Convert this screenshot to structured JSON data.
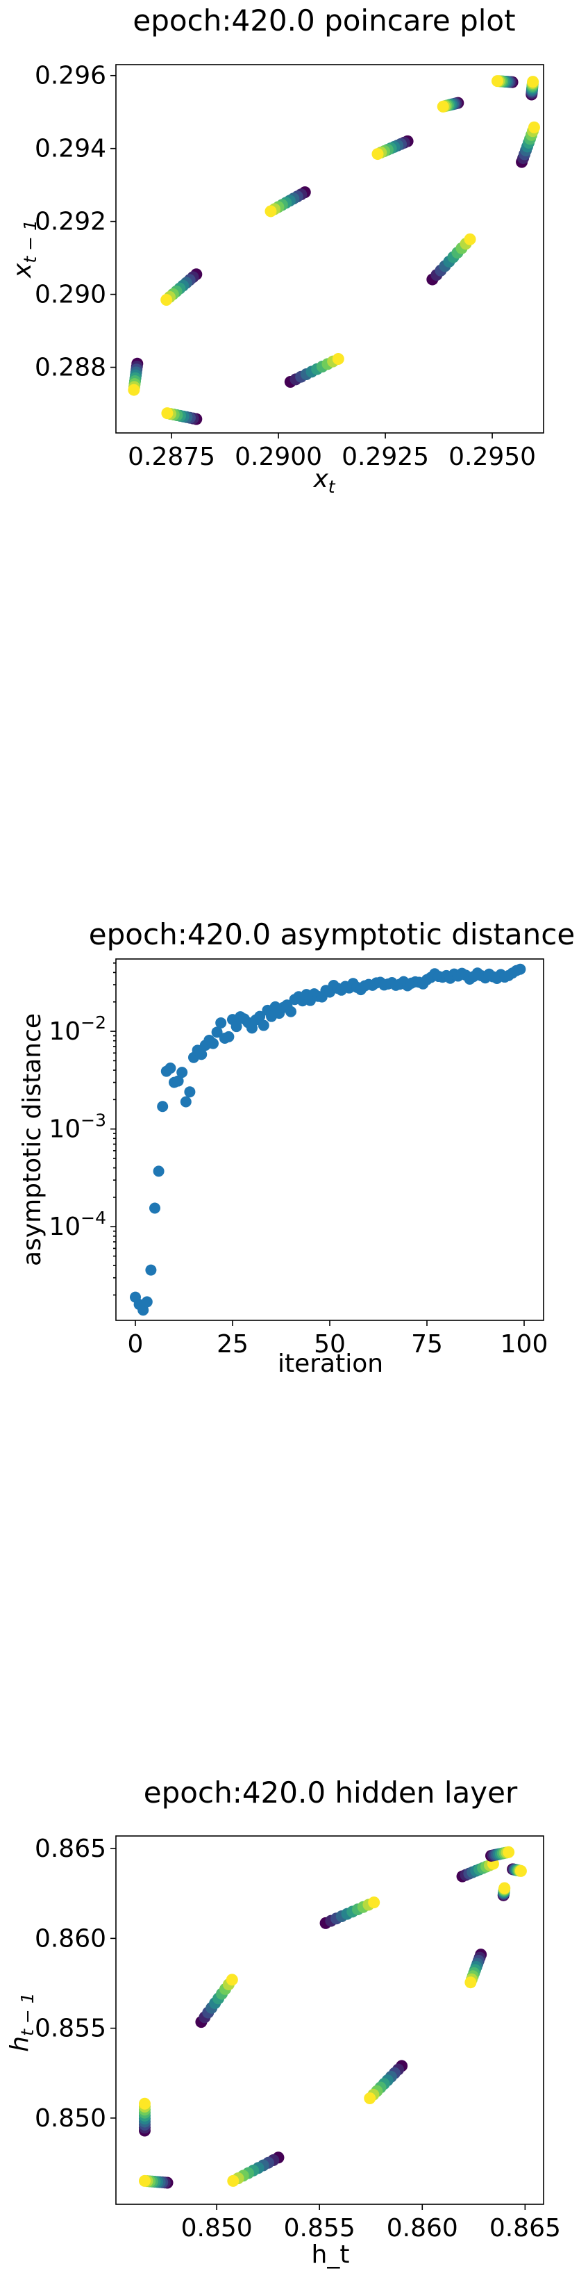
{
  "chart_data": [
    {
      "type": "scatter",
      "title": "epoch:420.0 poincare plot",
      "xlabel": "x_t",
      "ylabel": "x_{t-1}",
      "xlim": [
        0.2862,
        0.2962
      ],
      "ylim": [
        0.2862,
        0.2963
      ],
      "xticks": [
        0.2875,
        0.29,
        0.2925,
        0.295
      ],
      "xtick_labels": [
        "0.2875",
        "0.2900",
        "0.2925",
        "0.2950"
      ],
      "yticks": [
        0.288,
        0.29,
        0.292,
        0.294,
        0.296
      ],
      "ytick_labels": [
        "0.288",
        "0.290",
        "0.292",
        "0.294",
        "0.296"
      ],
      "colormap": [
        "#440154",
        "#3b528b",
        "#21918c",
        "#5ec962",
        "#fde725"
      ],
      "segments": [
        {
          "start": [
            0.2867,
            0.2881
          ],
          "end": [
            0.28662,
            0.28738
          ]
        },
        {
          "start": [
            0.28808,
            0.29055
          ],
          "end": [
            0.28738,
            0.28985
          ]
        },
        {
          "start": [
            0.29062,
            0.2928
          ],
          "end": [
            0.28982,
            0.29228
          ]
        },
        {
          "start": [
            0.29302,
            0.2942
          ],
          "end": [
            0.29232,
            0.29385
          ]
        },
        {
          "start": [
            0.2942,
            0.29525
          ],
          "end": [
            0.29385,
            0.29515
          ]
        },
        {
          "start": [
            0.29547,
            0.29582
          ],
          "end": [
            0.29512,
            0.29585
          ]
        },
        {
          "start": [
            0.29592,
            0.29548
          ],
          "end": [
            0.29595,
            0.29583
          ]
        },
        {
          "start": [
            0.29569,
            0.29363
          ],
          "end": [
            0.29598,
            0.29458
          ]
        },
        {
          "start": [
            0.2936,
            0.29041
          ],
          "end": [
            0.29448,
            0.29151
          ]
        },
        {
          "start": [
            0.29028,
            0.2876
          ],
          "end": [
            0.2914,
            0.28823
          ]
        },
        {
          "start": [
            0.28808,
            0.28658
          ],
          "end": [
            0.2874,
            0.28674
          ]
        }
      ]
    },
    {
      "type": "scatter",
      "title": "epoch:420.0 asymptotic distance",
      "xlabel": "iteration",
      "ylabel": "asymptotic distance",
      "yscale": "log",
      "xlim": [
        -5,
        105
      ],
      "ylim": [
        1.1e-05,
        0.055
      ],
      "xticks": [
        0,
        25,
        50,
        75,
        100
      ],
      "xtick_labels": [
        "0",
        "25",
        "50",
        "75",
        "100"
      ],
      "yticks": [
        0.0001,
        0.001,
        0.01
      ],
      "ytick_labels": [
        "10^-4",
        "10^-3",
        "10^-2"
      ],
      "color": "#1f77b4",
      "x": [
        0,
        1,
        2,
        3,
        4,
        5,
        6,
        7,
        8,
        9,
        10,
        11,
        12,
        13,
        14,
        15,
        16,
        17,
        18,
        19,
        20,
        21,
        22,
        23,
        24,
        25,
        26,
        27,
        28,
        29,
        30,
        31,
        32,
        33,
        34,
        35,
        36,
        37,
        38,
        39,
        40,
        41,
        42,
        43,
        44,
        45,
        46,
        47,
        48,
        49,
        50,
        51,
        52,
        53,
        54,
        55,
        56,
        57,
        58,
        59,
        60,
        61,
        62,
        63,
        64,
        65,
        66,
        67,
        68,
        69,
        70,
        71,
        72,
        73,
        74,
        75,
        76,
        77,
        78,
        79,
        80,
        81,
        82,
        83,
        84,
        85,
        86,
        87,
        88,
        89,
        90,
        91,
        92,
        93,
        94,
        95,
        96,
        97,
        98,
        99
      ],
      "y": [
        1.9e-05,
        1.6e-05,
        1.4e-05,
        1.7e-05,
        3.6e-05,
        0.000155,
        0.00037,
        0.0017,
        0.0039,
        0.0042,
        0.003,
        0.0031,
        0.0038,
        0.0019,
        0.0024,
        0.0054,
        0.0064,
        0.0058,
        0.0072,
        0.0081,
        0.0075,
        0.0098,
        0.0122,
        0.0085,
        0.0088,
        0.0132,
        0.0112,
        0.0141,
        0.0134,
        0.0123,
        0.0108,
        0.0131,
        0.0142,
        0.0115,
        0.0164,
        0.0142,
        0.0178,
        0.0153,
        0.0175,
        0.0186,
        0.0159,
        0.0212,
        0.0226,
        0.0205,
        0.0238,
        0.0207,
        0.0242,
        0.0228,
        0.0225,
        0.0262,
        0.0252,
        0.0295,
        0.0276,
        0.0264,
        0.0288,
        0.0278,
        0.0309,
        0.0282,
        0.0267,
        0.0292,
        0.0302,
        0.0296,
        0.0313,
        0.0318,
        0.0298,
        0.0305,
        0.0315,
        0.0296,
        0.0303,
        0.0322,
        0.0293,
        0.0311,
        0.0321,
        0.0318,
        0.0306,
        0.0338,
        0.0356,
        0.0388,
        0.0365,
        0.0358,
        0.0372,
        0.0349,
        0.0386,
        0.0368,
        0.0392,
        0.0375,
        0.0342,
        0.0364,
        0.0395,
        0.0371,
        0.0352,
        0.0385,
        0.0362,
        0.0348,
        0.0381,
        0.0359,
        0.0372,
        0.0395,
        0.0418,
        0.0432
      ]
    },
    {
      "type": "scatter",
      "title": "epoch:420.0 hidden layer",
      "xlabel": "h_t",
      "ylabel": "h_{t-1}",
      "xlim": [
        0.8451,
        0.8659
      ],
      "ylim": [
        0.8452,
        0.8657
      ],
      "xticks": [
        0.85,
        0.855,
        0.86,
        0.865
      ],
      "xtick_labels": [
        "0.850",
        "0.855",
        "0.860",
        "0.865"
      ],
      "yticks": [
        0.85,
        0.855,
        0.86,
        0.865
      ],
      "ytick_labels": [
        "0.850",
        "0.855",
        "0.860",
        "0.865"
      ],
      "colormap": [
        "#440154",
        "#3b528b",
        "#21918c",
        "#5ec962",
        "#fde725"
      ],
      "segments": [
        {
          "start": [
            0.8465,
            0.8493
          ],
          "end": [
            0.8465,
            0.8508
          ]
        },
        {
          "start": [
            0.84925,
            0.85535
          ],
          "end": [
            0.85075,
            0.8577
          ]
        },
        {
          "start": [
            0.8553,
            0.86085
          ],
          "end": [
            0.85765,
            0.862
          ]
        },
        {
          "start": [
            0.86195,
            0.86345
          ],
          "end": [
            0.86345,
            0.86415
          ]
        },
        {
          "start": [
            0.86335,
            0.8646
          ],
          "end": [
            0.8642,
            0.8648
          ]
        },
        {
          "start": [
            0.8644,
            0.86385
          ],
          "end": [
            0.8648,
            0.86375
          ]
        },
        {
          "start": [
            0.86395,
            0.8624
          ],
          "end": [
            0.864,
            0.8628
          ]
        },
        {
          "start": [
            0.86285,
            0.8591
          ],
          "end": [
            0.86235,
            0.85755
          ]
        },
        {
          "start": [
            0.859,
            0.8529
          ],
          "end": [
            0.85745,
            0.8511
          ]
        },
        {
          "start": [
            0.853,
            0.8478
          ],
          "end": [
            0.8508,
            0.8465
          ]
        },
        {
          "start": [
            0.8476,
            0.8464
          ],
          "end": [
            0.8465,
            0.8465
          ]
        }
      ]
    }
  ]
}
